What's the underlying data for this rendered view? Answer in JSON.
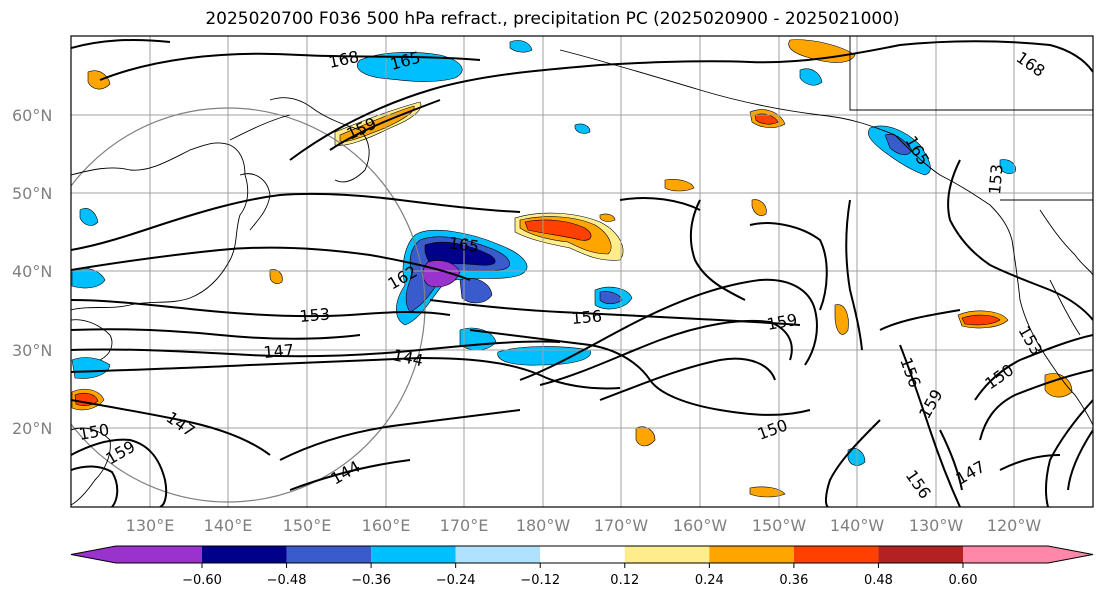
{
  "title": "2025020700 F036 500 hPa refract., precipitation PC (2025020900 - 2025021000)",
  "map": {
    "lat_labels": [
      "60°N",
      "50°N",
      "40°N",
      "30°N",
      "20°N"
    ],
    "lon_labels": [
      "130°E",
      "140°E",
      "150°E",
      "160°E",
      "170°E",
      "180°W",
      "170°W",
      "160°W",
      "150°W",
      "140°W",
      "130°W",
      "120°W"
    ],
    "contour_labels": [
      "168",
      "165",
      "159",
      "165",
      "162",
      "153",
      "156",
      "159",
      "147",
      "144",
      "150",
      "156",
      "159",
      "150",
      "153",
      "147",
      "156",
      "147",
      "144",
      "165",
      "153",
      "168",
      "150",
      "159"
    ]
  },
  "colorbar": {
    "tick_labels": [
      "−0.60",
      "−0.48",
      "−0.36",
      "−0.24",
      "−0.12",
      "0.12",
      "0.24",
      "0.36",
      "0.48",
      "0.60"
    ],
    "colors": [
      "#9a32cd",
      "#00008b",
      "#3a5bcc",
      "#00bfff",
      "#b0e2ff",
      "#ffffff",
      "#ffec8b",
      "#ffa500",
      "#ff4000",
      "#b22222",
      "#ff88aa"
    ]
  },
  "colors": {
    "neg_dark": "#00008b",
    "neg_mid": "#3a5bcc",
    "neg_cyan": "#00bfff",
    "neg_light": "#b0e2ff",
    "pos_yellow": "#ffec8b",
    "pos_orange": "#ffa500",
    "pos_red": "#ff4000",
    "purple": "#9a32cd"
  }
}
